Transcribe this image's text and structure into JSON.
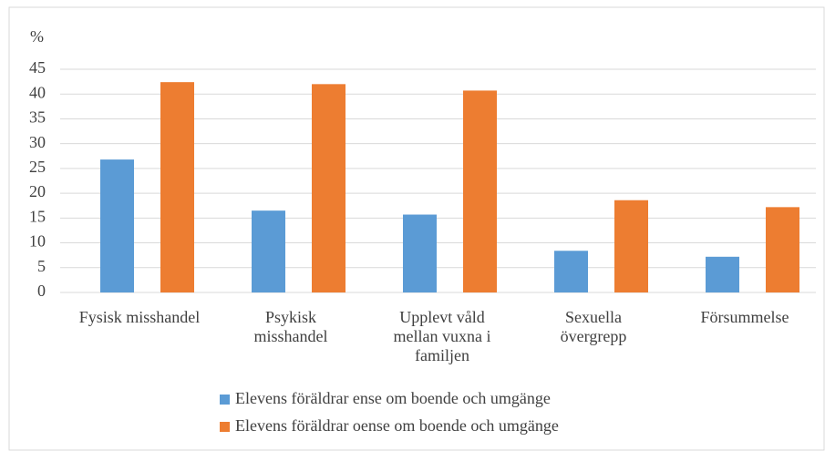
{
  "chart_data": {
    "type": "bar",
    "y_label": "%",
    "categories": [
      "Fysisk misshandel",
      "Psykisk misshandel",
      "Upplevt våld mellan vuxna i familjen",
      "Sexuella övergrepp",
      "Försummelse"
    ],
    "series": [
      {
        "name": "Elevens föräldrar ense om boende och umgänge",
        "color": "#5b9bd5",
        "values": [
          26.8,
          16.5,
          15.7,
          8.4,
          7.2
        ]
      },
      {
        "name": "Elevens föräldrar oense om boende och umgänge",
        "color": "#ed7d31",
        "values": [
          42.4,
          42.0,
          40.7,
          18.6,
          17.2
        ]
      }
    ],
    "ylim": [
      0,
      45
    ],
    "yticks": [
      0,
      5,
      10,
      15,
      20,
      25,
      30,
      35,
      40,
      45
    ],
    "grid": true,
    "legend": "bottom"
  }
}
